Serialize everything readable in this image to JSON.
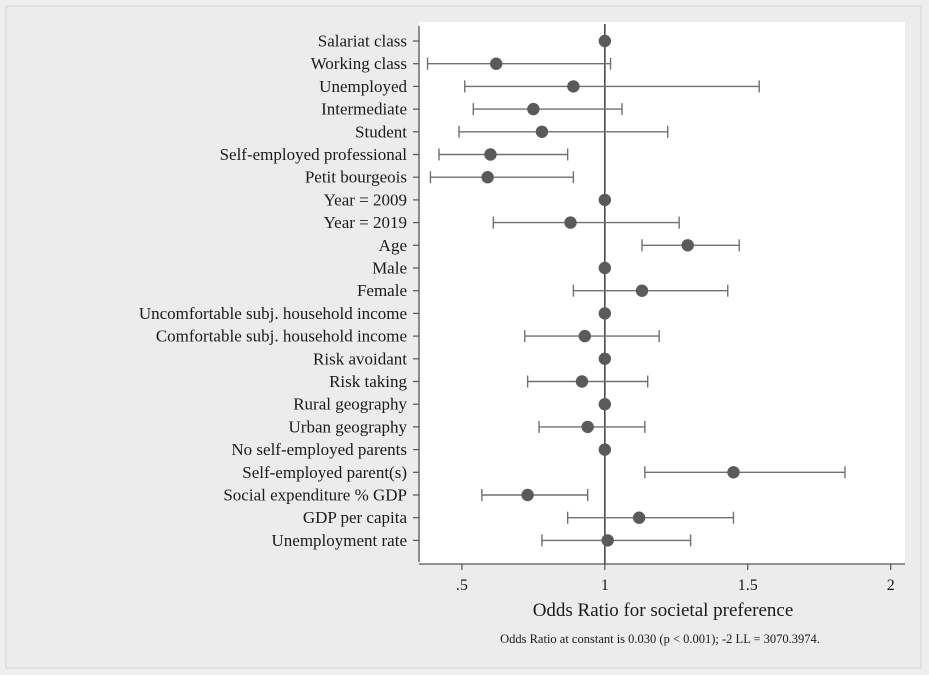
{
  "chart_data": {
    "type": "forest",
    "title": "",
    "xlabel": "Odds Ratio for societal preference",
    "ylabel": "",
    "note": "Odds Ratio at constant is 0.030 (p < 0.001); -2 LL = 3070.3974.",
    "xlim": [
      0.35,
      2.05
    ],
    "xticks": [
      0.5,
      1,
      1.5,
      2
    ],
    "xtick_labels": [
      ".5",
      "1",
      "1.5",
      "2"
    ],
    "reference_line": 1,
    "grid": false,
    "rows": [
      {
        "label": "Salariat class",
        "or": 1.0,
        "lo": null,
        "hi": null
      },
      {
        "label": "Working class",
        "or": 0.62,
        "lo": 0.38,
        "hi": 1.02
      },
      {
        "label": "Unemployed",
        "or": 0.89,
        "lo": 0.51,
        "hi": 1.54
      },
      {
        "label": "Intermediate",
        "or": 0.75,
        "lo": 0.54,
        "hi": 1.06
      },
      {
        "label": "Student",
        "or": 0.78,
        "lo": 0.49,
        "hi": 1.22
      },
      {
        "label": "Self-employed professional",
        "or": 0.6,
        "lo": 0.42,
        "hi": 0.87
      },
      {
        "label": "Petit bourgeois",
        "or": 0.59,
        "lo": 0.39,
        "hi": 0.89
      },
      {
        "label": "Year = 2009",
        "or": 1.0,
        "lo": null,
        "hi": null
      },
      {
        "label": "Year = 2019",
        "or": 0.88,
        "lo": 0.61,
        "hi": 1.26
      },
      {
        "label": "Age",
        "or": 1.29,
        "lo": 1.13,
        "hi": 1.47
      },
      {
        "label": "Male",
        "or": 1.0,
        "lo": null,
        "hi": null
      },
      {
        "label": "Female",
        "or": 1.13,
        "lo": 0.89,
        "hi": 1.43
      },
      {
        "label": "Uncomfortable subj. household income",
        "or": 1.0,
        "lo": null,
        "hi": null
      },
      {
        "label": "Comfortable subj. household income",
        "or": 0.93,
        "lo": 0.72,
        "hi": 1.19
      },
      {
        "label": "Risk avoidant",
        "or": 1.0,
        "lo": null,
        "hi": null
      },
      {
        "label": "Risk taking",
        "or": 0.92,
        "lo": 0.73,
        "hi": 1.15
      },
      {
        "label": "Rural geography",
        "or": 1.0,
        "lo": null,
        "hi": null
      },
      {
        "label": "Urban geography",
        "or": 0.94,
        "lo": 0.77,
        "hi": 1.14
      },
      {
        "label": "No self-employed parents",
        "or": 1.0,
        "lo": null,
        "hi": null
      },
      {
        "label": "Self-employed parent(s)",
        "or": 1.45,
        "lo": 1.14,
        "hi": 1.84
      },
      {
        "label": "Social expenditure % GDP",
        "or": 0.73,
        "lo": 0.57,
        "hi": 0.94
      },
      {
        "label": "GDP per capita",
        "or": 1.12,
        "lo": 0.87,
        "hi": 1.45
      },
      {
        "label": "Unemployment rate",
        "or": 1.01,
        "lo": 0.78,
        "hi": 1.3
      }
    ],
    "colors": {
      "figure_background": "#eeeeee",
      "plot_background": "#ffffff",
      "marker": "#5a5a5a",
      "ci_line": "#707070",
      "reference_line": "#4a4a4a",
      "axis": "#555555"
    }
  }
}
